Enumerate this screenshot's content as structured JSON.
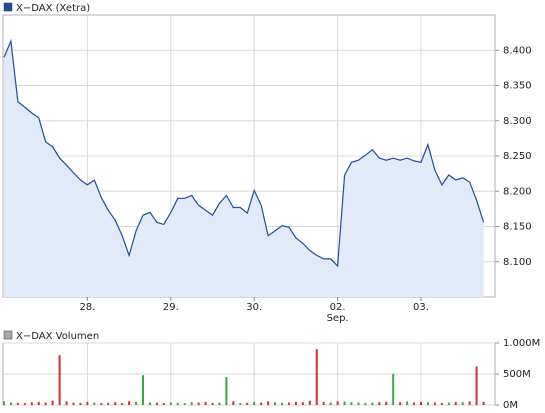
{
  "chart_data": [
    {
      "type": "line",
      "categories": [
        null,
        null,
        null,
        null,
        null,
        null,
        null,
        null,
        null,
        null,
        null,
        null,
        "28.",
        null,
        null,
        null,
        null,
        null,
        null,
        null,
        null,
        null,
        null,
        null,
        "29.",
        null,
        null,
        null,
        null,
        null,
        null,
        null,
        null,
        null,
        null,
        null,
        "30.",
        null,
        null,
        null,
        null,
        null,
        null,
        null,
        null,
        null,
        null,
        null,
        "02.",
        null,
        null,
        null,
        null,
        null,
        null,
        null,
        null,
        null,
        null,
        null,
        "03.",
        null,
        null,
        null,
        null,
        null,
        null,
        null,
        null,
        null
      ],
      "month_label": "Sep.",
      "series": [
        {
          "name": "X−DAX (Xetra)",
          "color": "#1f4e9c",
          "fill": "#e1eaf8",
          "values": [
            8390,
            8413,
            8327,
            8319,
            8311,
            8304,
            8270,
            8263,
            8247,
            8237,
            8226,
            8216,
            8209,
            8216,
            8191,
            8173,
            8159,
            8137,
            8109,
            8144,
            8166,
            8170,
            8156,
            8153,
            8170,
            8190,
            8190,
            8194,
            8180,
            8173,
            8166,
            8183,
            8194,
            8177,
            8177,
            8169,
            8201,
            8180,
            8137,
            8144,
            8151,
            8149,
            8134,
            8126,
            8116,
            8109,
            8104,
            8104,
            8094,
            8223,
            8241,
            8244,
            8251,
            8259,
            8247,
            8244,
            8247,
            8244,
            8247,
            8243,
            8241,
            8266,
            8230,
            8209,
            8223,
            8216,
            8219,
            8213,
            8187,
            8156
          ]
        }
      ],
      "ylim": [
        8050,
        8450
      ],
      "yticks": [
        {
          "value": 8100,
          "label": "8.100"
        },
        {
          "value": 8150,
          "label": "8.150"
        },
        {
          "value": 8200,
          "label": "8.200"
        },
        {
          "value": 8250,
          "label": "8.250"
        },
        {
          "value": 8300,
          "label": "8.300"
        },
        {
          "value": 8350,
          "label": "8.350"
        },
        {
          "value": 8400,
          "label": "8.400"
        }
      ],
      "grid": true
    },
    {
      "type": "bar",
      "series": [
        {
          "name": "X−DAX Volumen",
          "color": "#a8a8a8",
          "values": [
            60,
            40,
            35,
            30,
            45,
            50,
            40,
            70,
            800,
            60,
            40,
            35,
            50,
            40,
            30,
            35,
            45,
            30,
            60,
            50,
            480,
            40,
            35,
            30,
            40,
            35,
            30,
            45,
            40,
            50,
            35,
            40,
            450,
            60,
            30,
            35,
            50,
            40,
            60,
            45,
            35,
            40,
            50,
            45,
            70,
            900,
            50,
            40,
            60,
            55,
            45,
            40,
            35,
            40,
            45,
            50,
            500,
            45,
            60,
            40,
            50,
            45,
            40,
            35,
            40,
            50,
            45,
            60,
            620,
            50
          ]
        }
      ],
      "up_color": "#3aa83a",
      "down_color": "#d03030",
      "ylim": [
        0,
        1000
      ],
      "yticks": [
        {
          "value": 0,
          "label": "0M"
        },
        {
          "value": 500,
          "label": "500M"
        },
        {
          "value": 1000,
          "label": "1.000M"
        }
      ],
      "grid": true
    }
  ]
}
